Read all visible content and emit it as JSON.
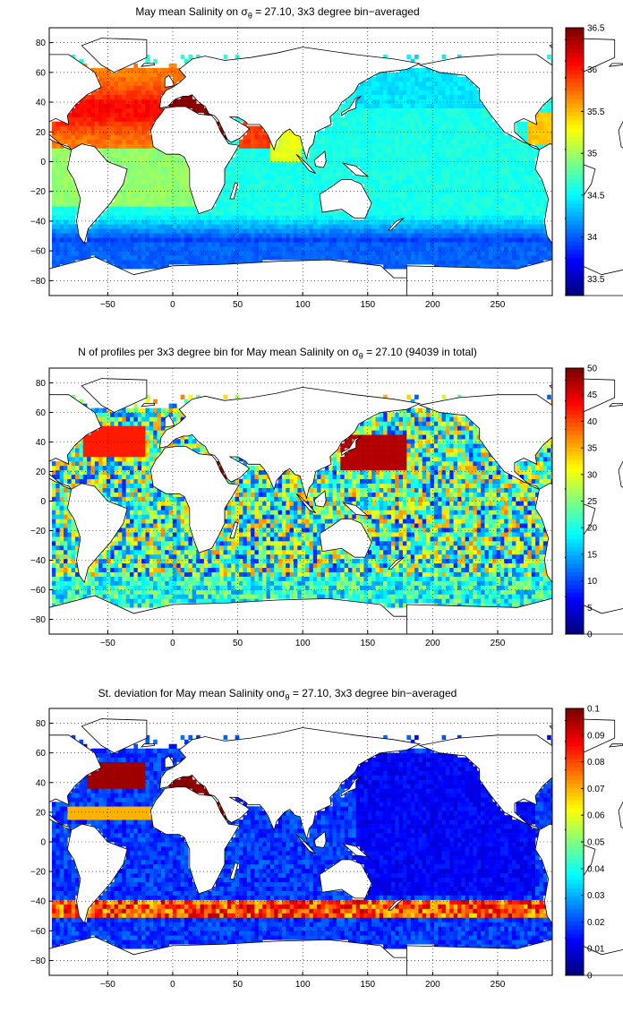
{
  "chart_data": [
    {
      "type": "heatmap",
      "title": {
        "prefix": "May mean Salinity on ",
        "sigma": "σ",
        "sub": "θ",
        "suffix": " = 27.10, 3x3 degree bin−averaged"
      },
      "xlim": [
        -95,
        292
      ],
      "ylim": [
        -90,
        90
      ],
      "xticks": [
        -50,
        0,
        50,
        100,
        150,
        200,
        250
      ],
      "yticks": [
        80,
        60,
        40,
        20,
        0,
        -20,
        -40,
        -60,
        -80
      ],
      "colorbar": {
        "min": 33.3,
        "max": 36.5,
        "ticks": [
          "36.5",
          "36",
          "35.5",
          "35",
          "34.5",
          "34",
          "33.5"
        ],
        "tick_values": [
          36.5,
          36,
          35.5,
          35,
          34.5,
          34,
          33.5
        ]
      },
      "colormap": "jet",
      "grid": true,
      "field": "salinity"
    },
    {
      "type": "heatmap",
      "title": {
        "prefix": "N of profiles per 3x3 degree bin for May mean Salinity on ",
        "sigma": "σ",
        "sub": "θ",
        "suffix": " = 27.10 (94039 in total)"
      },
      "xlim": [
        -95,
        292
      ],
      "ylim": [
        -90,
        90
      ],
      "xticks": [
        -50,
        0,
        50,
        100,
        150,
        200,
        250
      ],
      "yticks": [
        80,
        60,
        40,
        20,
        0,
        -20,
        -40,
        -60,
        -80
      ],
      "colorbar": {
        "min": 0,
        "max": 50,
        "ticks": [
          "50",
          "45",
          "40",
          "35",
          "30",
          "25",
          "20",
          "15",
          "10",
          "5",
          "0"
        ],
        "tick_values": [
          50,
          45,
          40,
          35,
          30,
          25,
          20,
          15,
          10,
          5,
          0
        ]
      },
      "colormap": "jet",
      "grid": true,
      "field": "count"
    },
    {
      "type": "heatmap",
      "title": {
        "prefix": "St. deviation for May mean Salinity on",
        "sigma": "σ",
        "sub": "θ",
        "suffix": " = 27.10, 3x3 degree bin−averaged"
      },
      "xlim": [
        -95,
        292
      ],
      "ylim": [
        -90,
        90
      ],
      "xticks": [
        -50,
        0,
        50,
        100,
        150,
        200,
        250
      ],
      "yticks": [
        80,
        60,
        40,
        20,
        0,
        -20,
        -40,
        -60,
        -80
      ],
      "colorbar": {
        "min": 0,
        "max": 0.1,
        "ticks": [
          "0.1",
          "0.09",
          "0.08",
          "0.07",
          "0.06",
          "0.05",
          "0.04",
          "0.03",
          "0.02",
          "0.01",
          "0"
        ],
        "tick_values": [
          0.1,
          0.09,
          0.08,
          0.07,
          0.06,
          0.05,
          0.04,
          0.03,
          0.02,
          0.01,
          0
        ]
      },
      "colormap": "jet",
      "grid": true,
      "field": "stdev"
    }
  ]
}
